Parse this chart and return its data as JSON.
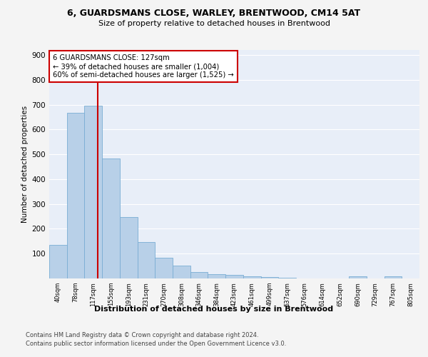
{
  "title1": "6, GUARDSMANS CLOSE, WARLEY, BRENTWOOD, CM14 5AT",
  "title2": "Size of property relative to detached houses in Brentwood",
  "xlabel": "Distribution of detached houses by size in Brentwood",
  "ylabel": "Number of detached properties",
  "bar_color": "#b8d0e8",
  "bar_edge_color": "#7aadd4",
  "annotation_box_color": "#ffffff",
  "annotation_box_edge": "#cc0000",
  "vline_color": "#cc0000",
  "footer1": "Contains HM Land Registry data © Crown copyright and database right 2024.",
  "footer2": "Contains public sector information licensed under the Open Government Licence v3.0.",
  "annotation_line1": "6 GUARDSMANS CLOSE: 127sqm",
  "annotation_line2": "← 39% of detached houses are smaller (1,004)",
  "annotation_line3": "60% of semi-detached houses are larger (1,525) →",
  "bin_labels": [
    "40sqm",
    "78sqm",
    "117sqm",
    "155sqm",
    "193sqm",
    "231sqm",
    "270sqm",
    "308sqm",
    "346sqm",
    "384sqm",
    "423sqm",
    "461sqm",
    "499sqm",
    "537sqm",
    "576sqm",
    "614sqm",
    "652sqm",
    "690sqm",
    "729sqm",
    "767sqm",
    "805sqm"
  ],
  "bar_heights": [
    135,
    668,
    695,
    483,
    248,
    148,
    84,
    52,
    27,
    18,
    14,
    9,
    5,
    4,
    0,
    0,
    0,
    10,
    0,
    8,
    0
  ],
  "ylim": [
    0,
    920
  ],
  "yticks": [
    0,
    100,
    200,
    300,
    400,
    500,
    600,
    700,
    800,
    900
  ],
  "background_color": "#e8eef8",
  "grid_color": "#ffffff",
  "fig_bg": "#f4f4f4"
}
